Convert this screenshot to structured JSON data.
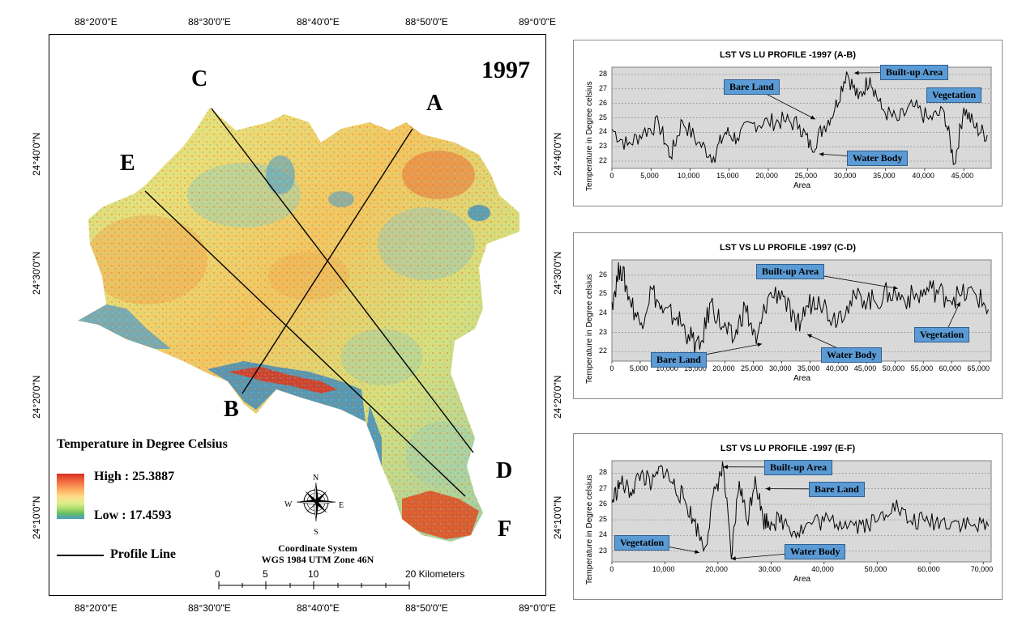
{
  "map": {
    "year": "1997",
    "top_ticks": [
      "88°20'0\"E",
      "88°30'0\"E",
      "88°40'0\"E",
      "88°50'0\"E",
      "89°0'0\"E"
    ],
    "bottom_ticks": [
      "88°20'0\"E",
      "88°30'0\"E",
      "88°40'0\"E",
      "88°50'0\"E",
      "89°0'0\"E"
    ],
    "left_ticks": [
      "24°40'0\"N",
      "24°30'0\"N",
      "24°20'0\"N",
      "24°10'0\"N"
    ],
    "right_ticks": [
      "24°40'0\"N",
      "24°30'0\"N",
      "24°20'0\"N",
      "24°10'0\"N"
    ],
    "point_labels": {
      "A": "A",
      "B": "B",
      "C": "C",
      "D": "D",
      "E": "E",
      "F": "F"
    },
    "legend": {
      "title": "Temperature in Degree Celsius",
      "high": "High : 25.3887",
      "low": "Low : 17.4593",
      "profile_line": "Profile Line"
    },
    "coordinate_system": {
      "line1": "Coordinate System",
      "line2": "WGS 1984 UTM Zone 46N"
    },
    "scale_bar": {
      "labels": [
        "0",
        "5",
        "10",
        "20 Kilometers"
      ]
    },
    "compass": {
      "n": "N",
      "s": "S",
      "e": "E",
      "w": "W"
    }
  },
  "chart_data": [
    {
      "type": "line",
      "title": "LST VS LU PROFILE -1997 (A-B)",
      "xlabel": "Area",
      "ylabel": "Temperature in Degree celsius",
      "xlim": [
        0,
        48500
      ],
      "ylim": [
        21.5,
        28.5
      ],
      "x_ticks": [
        "0",
        "5,000",
        "10,000",
        "15,000",
        "20,000",
        "25,000",
        "30,000",
        "35,000",
        "40,000",
        "45,000"
      ],
      "y_ticks": [
        "22",
        "23",
        "24",
        "25",
        "26",
        "27",
        "28"
      ],
      "grid": "horizontal",
      "series": [
        {
          "color": "#000000",
          "x": [
            0,
            2000,
            4000,
            6000,
            7500,
            9000,
            11000,
            13000,
            14500,
            16000,
            18000,
            20000,
            22000,
            24000,
            25500,
            27000,
            28500,
            30000,
            31500,
            33000,
            34500,
            36500,
            38500,
            40500,
            42500,
            43800,
            45000,
            46500,
            48000
          ],
          "y": [
            24.2,
            23.1,
            24.0,
            24.6,
            22.3,
            24.8,
            23.3,
            22.3,
            24.0,
            23.6,
            24.6,
            24.7,
            24.8,
            24.5,
            22.9,
            24.3,
            25.6,
            28.2,
            26.3,
            27.8,
            25.6,
            24.8,
            25.8,
            24.9,
            25.4,
            21.8,
            25.7,
            24.3,
            23.8
          ]
        }
      ],
      "annotations": [
        "Built-up Area",
        "Bare Land",
        "Vegetation",
        "Water Body"
      ]
    },
    {
      "type": "line",
      "title": "LST VS LU PROFILE -1997 (C-D)",
      "xlabel": "Area",
      "ylabel": "Temperature in Degree celsius",
      "xlim": [
        0,
        67000
      ],
      "ylim": [
        21.5,
        26.8
      ],
      "x_ticks": [
        "0",
        "5,000",
        "10,000",
        "15,000",
        "20,000",
        "25,000",
        "30,000",
        "35,000",
        "40,000",
        "45,000",
        "50,000",
        "55,000",
        "60,000",
        "65,000"
      ],
      "y_ticks": [
        "22",
        "23",
        "24",
        "25",
        "26"
      ],
      "grid": "horizontal",
      "series": [
        {
          "color": "#000000",
          "x": [
            0,
            1500,
            3000,
            5000,
            7000,
            9000,
            11500,
            13500,
            15500,
            17500,
            19500,
            21500,
            23500,
            25500,
            27500,
            30000,
            32500,
            34500,
            36500,
            39000,
            41500,
            44000,
            46500,
            49000,
            51500,
            54000,
            56500,
            59000,
            61500,
            64000,
            66500
          ],
          "y": [
            24.6,
            26.5,
            24.9,
            23.4,
            25.3,
            24.0,
            23.8,
            22.9,
            22.1,
            24.6,
            23.3,
            22.6,
            24.4,
            22.4,
            24.8,
            25.2,
            23.1,
            24.4,
            24.9,
            23.7,
            24.4,
            24.9,
            24.6,
            25.1,
            24.8,
            24.9,
            25.3,
            24.9,
            24.9,
            25.1,
            24.2
          ]
        }
      ],
      "annotations": [
        "Built-up Area",
        "Vegetation",
        "Bare Land",
        "Water Body"
      ]
    },
    {
      "type": "line",
      "title": "LST VS LU PROFILE -1997 (E-F)",
      "xlabel": "Area",
      "ylabel": "Temperature in Degree celsius",
      "xlim": [
        0,
        71500
      ],
      "ylim": [
        22.3,
        28.8
      ],
      "x_ticks": [
        "0",
        "10,000",
        "20,000",
        "30,000",
        "40,000",
        "50,000",
        "60,000",
        "70,000"
      ],
      "y_ticks": [
        "23",
        "24",
        "25",
        "26",
        "27",
        "28"
      ],
      "grid": "horizontal",
      "series": [
        {
          "color": "#000000",
          "x": [
            0,
            1500,
            3500,
            5500,
            7500,
            9500,
            11500,
            13500,
            15500,
            17500,
            19500,
            21000,
            22500,
            24000,
            25500,
            27000,
            28500,
            30000,
            32500,
            35000,
            38000,
            41000,
            44000,
            47000,
            50000,
            53000,
            56000,
            59000,
            62000,
            65000,
            68000,
            71000
          ],
          "y": [
            26.1,
            27.4,
            26.8,
            28.0,
            27.2,
            28.4,
            27.3,
            26.4,
            24.9,
            23.2,
            27.0,
            28.4,
            22.5,
            27.5,
            24.9,
            27.8,
            25.0,
            24.9,
            24.9,
            24.2,
            24.9,
            24.9,
            24.9,
            24.7,
            24.9,
            26.1,
            24.9,
            24.9,
            24.9,
            24.9,
            24.6,
            24.6
          ]
        }
      ],
      "annotations": [
        "Built-up Area",
        "Bare Land",
        "Vegetation",
        "Water Body"
      ]
    }
  ]
}
